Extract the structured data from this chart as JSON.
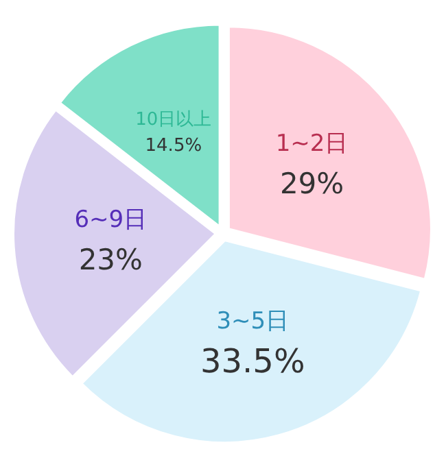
{
  "chart_data": {
    "type": "pie",
    "categories": [
      "1~2日",
      "3~5日",
      "6~9日",
      "10日以上"
    ],
    "values": [
      29,
      33.5,
      23,
      14.5
    ],
    "colors": [
      "#ffd0dc",
      "#d9f1fb",
      "#d9d0f0",
      "#7fe0c8"
    ],
    "value_labels": [
      "29%",
      "33.5%",
      "23%",
      "14.5%"
    ],
    "legend": false
  }
}
